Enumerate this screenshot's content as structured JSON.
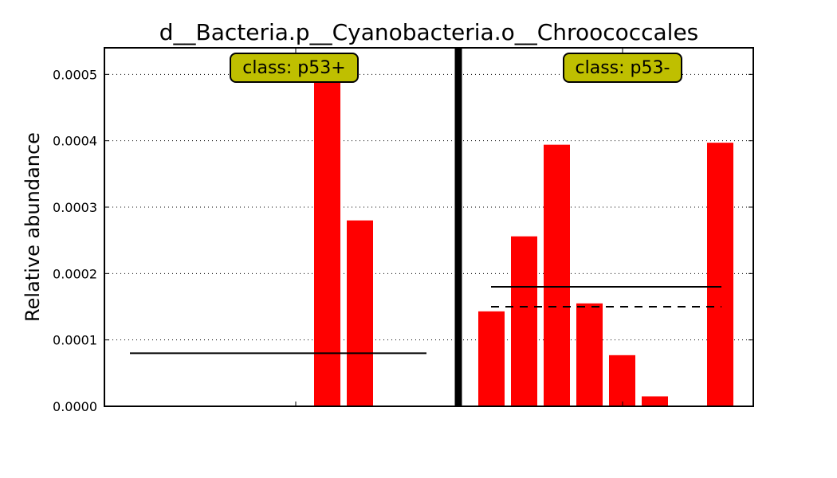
{
  "chart_data": {
    "type": "bar",
    "title": "d__Bacteria.p__Cyanobacteria.o__Chroococcales",
    "xlabel": "",
    "ylabel": "Relative abundance",
    "ylim": [
      0,
      0.00054
    ],
    "yticks": [
      "0.0000",
      "0.0001",
      "0.0002",
      "0.0003",
      "0.0004",
      "0.0005"
    ],
    "ytick_values": [
      0,
      0.0001,
      0.0002,
      0.0003,
      0.0004,
      0.0005
    ],
    "grid": "horizontal dotted",
    "bar_color": "#ff0000",
    "class_box_color": "#bfbf00",
    "groups": [
      {
        "label": "class: p53+",
        "values": [
          0,
          0,
          0,
          0,
          0,
          0,
          0.0005,
          0.00028,
          0,
          0
        ],
        "mean": 8e-05,
        "median": null
      },
      {
        "label": "class: p53-",
        "values": [
          0.000143,
          0.000256,
          0.000394,
          0.000155,
          7.7e-05,
          1.5e-05,
          0,
          0.000397
        ],
        "mean": 0.00018,
        "median": 0.00015
      }
    ]
  }
}
